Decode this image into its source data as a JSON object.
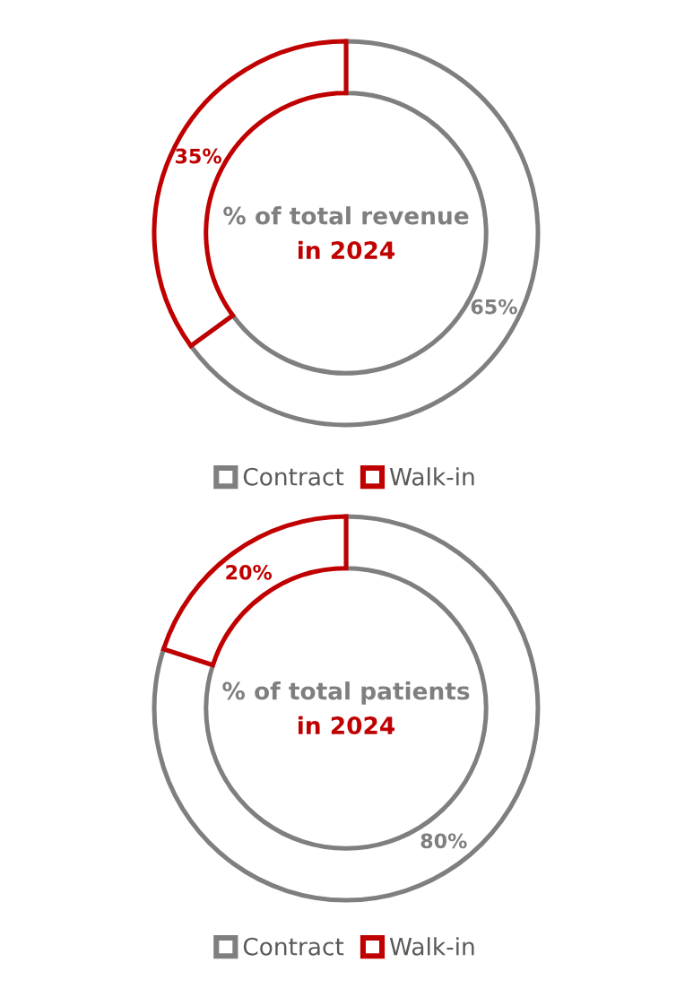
{
  "chart_data": [
    {
      "type": "donut",
      "title": "% of total revenue",
      "subtitle": "in 2024",
      "categories": [
        "Contract",
        "Walk-in"
      ],
      "values": [
        65,
        35
      ],
      "value_labels": [
        "65%",
        "35%"
      ],
      "colors": [
        "#7f7f7f",
        "#c00000"
      ],
      "legend": "bottom"
    },
    {
      "type": "donut",
      "title": "% of total patients",
      "subtitle": "in 2024",
      "categories": [
        "Contract",
        "Walk-in"
      ],
      "values": [
        80,
        20
      ],
      "value_labels": [
        "80%",
        "20%"
      ],
      "colors": [
        "#7f7f7f",
        "#c00000"
      ],
      "legend": "bottom"
    }
  ]
}
